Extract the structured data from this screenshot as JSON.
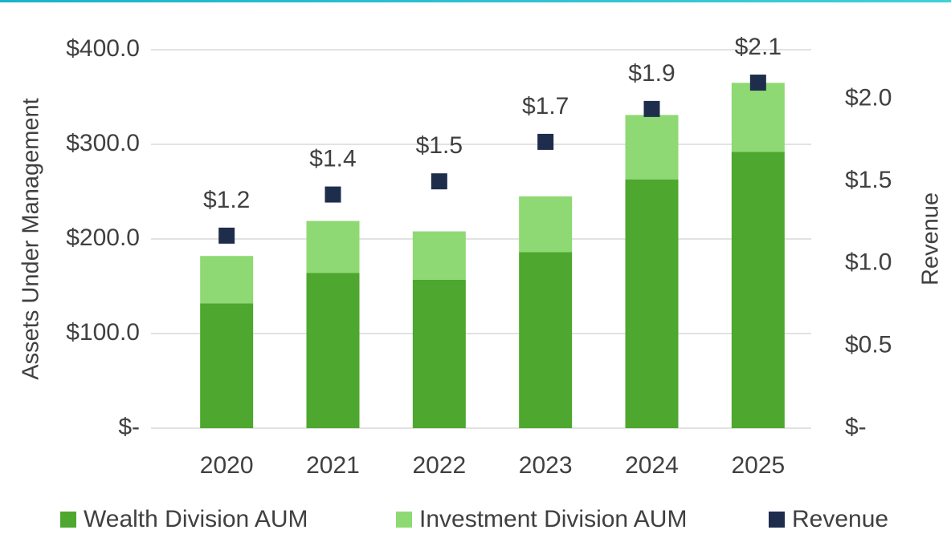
{
  "chart_data": {
    "type": "bar",
    "categories": [
      "2020",
      "2021",
      "2022",
      "2023",
      "2024",
      "2025"
    ],
    "series": [
      {
        "name": "Wealth Division AUM",
        "color": "#4ea72e",
        "values": [
          132,
          164,
          157,
          186,
          263,
          292
        ]
      },
      {
        "name": "Investment Division AUM",
        "color": "#8ed973",
        "values": [
          50,
          55,
          51,
          59,
          68,
          73
        ]
      },
      {
        "name": "Revenue",
        "color": "#1f2d4d",
        "axis": "y2",
        "values": [
          1.17,
          1.42,
          1.5,
          1.74,
          1.94,
          2.1
        ],
        "value_labels": [
          "$1.2",
          "$1.4",
          "$1.5",
          "$1.7",
          "$1.9",
          "$2.1"
        ]
      }
    ],
    "y_label": "Assets Under Management",
    "y2_label": "Revenue",
    "ylim": [
      0,
      400
    ],
    "yticks": [
      {
        "value": 0,
        "label": "$-"
      },
      {
        "value": 100,
        "label": "$100.0"
      },
      {
        "value": 200,
        "label": "$200.0"
      },
      {
        "value": 300,
        "label": "$300.0"
      },
      {
        "value": 400,
        "label": "$400.0"
      }
    ],
    "y2lim": [
      0,
      2.3
    ],
    "y2ticks": [
      {
        "value": 0,
        "label": "$-"
      },
      {
        "value": 0.5,
        "label": "$0.5"
      },
      {
        "value": 1,
        "label": "$1.0"
      },
      {
        "value": 1.5,
        "label": "$1.5"
      },
      {
        "value": 2,
        "label": "$2.0"
      }
    ],
    "grid": true,
    "stacked": true,
    "legend": "bottom"
  }
}
